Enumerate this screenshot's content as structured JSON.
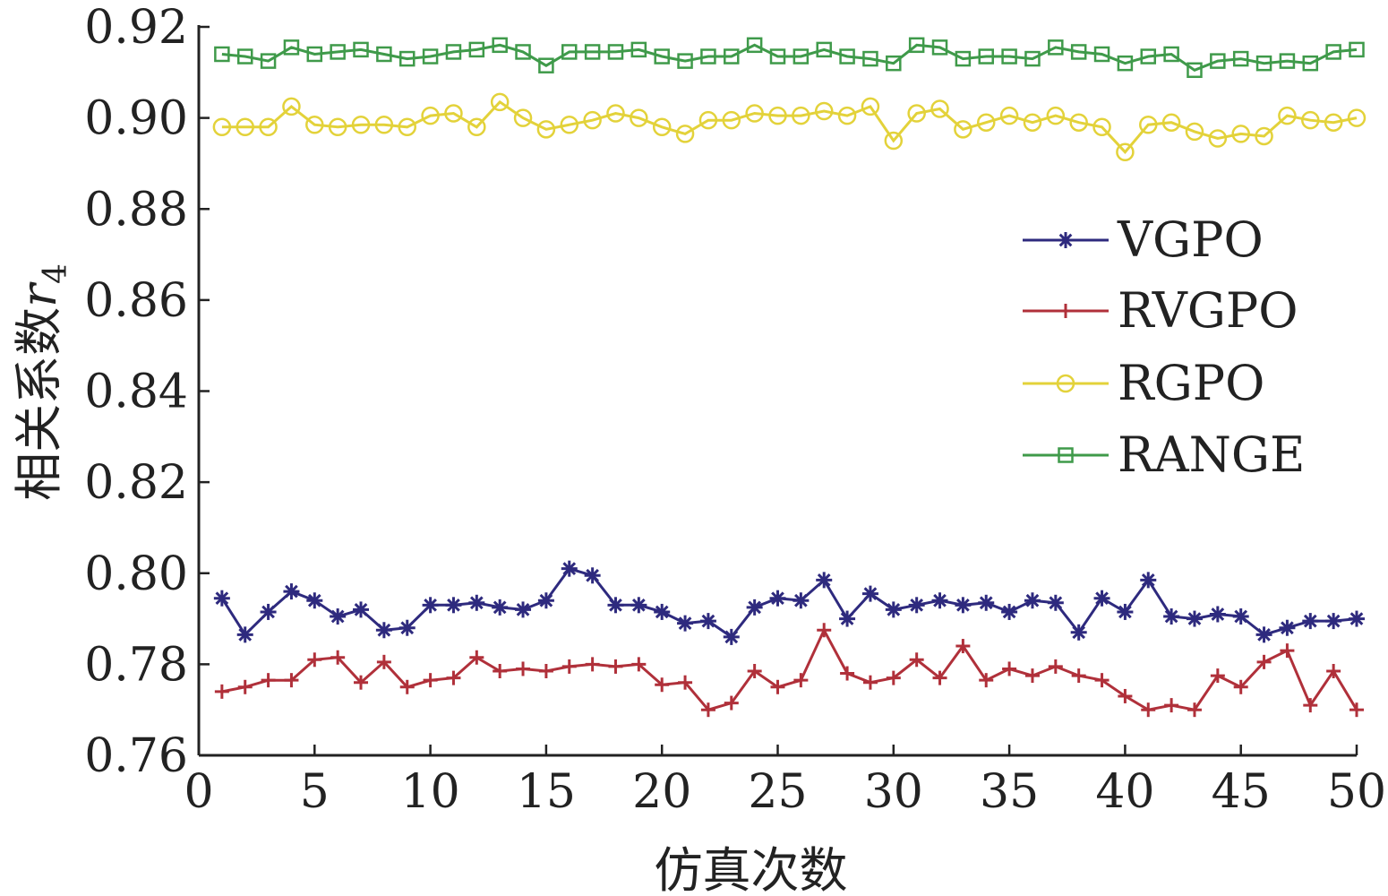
{
  "chart_data": {
    "type": "line",
    "xlabel": "仿真次数",
    "ylabel": "相关系数",
    "ylabel_var": "r",
    "ylabel_sub": "4",
    "xlim": [
      0,
      50
    ],
    "ylim": [
      0.76,
      0.92
    ],
    "xticks": [
      0,
      5,
      10,
      15,
      20,
      25,
      30,
      35,
      40,
      45,
      50
    ],
    "yticks": [
      "0.76",
      "0.78",
      "0.80",
      "0.82",
      "0.84",
      "0.86",
      "0.88",
      "0.90",
      "0.92"
    ],
    "legend_position": "right",
    "grid": false,
    "x": [
      1,
      2,
      3,
      4,
      5,
      6,
      7,
      8,
      9,
      10,
      11,
      12,
      13,
      14,
      15,
      16,
      17,
      18,
      19,
      20,
      21,
      22,
      23,
      24,
      25,
      26,
      27,
      28,
      29,
      30,
      31,
      32,
      33,
      34,
      35,
      36,
      37,
      38,
      39,
      40,
      41,
      42,
      43,
      44,
      45,
      46,
      47,
      48,
      49,
      50
    ],
    "series": [
      {
        "name": "VGPO",
        "color": "#2e2a7e",
        "marker": "asterisk",
        "values": [
          0.7945,
          0.7865,
          0.7915,
          0.796,
          0.794,
          0.7905,
          0.792,
          0.7875,
          0.788,
          0.793,
          0.793,
          0.7935,
          0.7925,
          0.792,
          0.794,
          0.801,
          0.7995,
          0.793,
          0.793,
          0.7915,
          0.789,
          0.7895,
          0.786,
          0.7925,
          0.7945,
          0.794,
          0.7985,
          0.79,
          0.7955,
          0.792,
          0.793,
          0.794,
          0.793,
          0.7935,
          0.7915,
          0.794,
          0.7935,
          0.787,
          0.7945,
          0.7915,
          0.7985,
          0.7905,
          0.79,
          0.791,
          0.7905,
          0.7865,
          0.788,
          0.7895,
          0.7895,
          0.79
        ]
      },
      {
        "name": "RVGPO",
        "color": "#b0303a",
        "marker": "plus",
        "values": [
          0.774,
          0.775,
          0.7765,
          0.7765,
          0.781,
          0.7815,
          0.776,
          0.7805,
          0.775,
          0.7765,
          0.777,
          0.7815,
          0.7785,
          0.779,
          0.7785,
          0.7795,
          0.78,
          0.7795,
          0.78,
          0.7755,
          0.776,
          0.77,
          0.7715,
          0.7785,
          0.775,
          0.7765,
          0.7875,
          0.778,
          0.776,
          0.777,
          0.781,
          0.777,
          0.784,
          0.7765,
          0.779,
          0.7775,
          0.7795,
          0.7775,
          0.7765,
          0.773,
          0.77,
          0.771,
          0.77,
          0.7775,
          0.775,
          0.7805,
          0.783,
          0.771,
          0.7785,
          0.77
        ]
      },
      {
        "name": "RGPO",
        "color": "#e3d23a",
        "marker": "circle",
        "values": [
          0.898,
          0.898,
          0.898,
          0.9025,
          0.8985,
          0.898,
          0.8985,
          0.8985,
          0.898,
          0.9005,
          0.901,
          0.898,
          0.9035,
          0.9,
          0.8975,
          0.8985,
          0.8995,
          0.901,
          0.9,
          0.898,
          0.8965,
          0.8995,
          0.8995,
          0.901,
          0.9005,
          0.9005,
          0.9015,
          0.9005,
          0.9025,
          0.895,
          0.901,
          0.902,
          0.8975,
          0.899,
          0.9005,
          0.899,
          0.9005,
          0.899,
          0.898,
          0.8925,
          0.8985,
          0.899,
          0.897,
          0.8955,
          0.8965,
          0.896,
          0.9005,
          0.8995,
          0.899,
          0.9
        ]
      },
      {
        "name": "RANGE",
        "color": "#3f9a4a",
        "marker": "square",
        "values": [
          0.914,
          0.9135,
          0.9125,
          0.9155,
          0.914,
          0.9145,
          0.915,
          0.914,
          0.913,
          0.9135,
          0.9145,
          0.915,
          0.916,
          0.9145,
          0.9115,
          0.9145,
          0.9145,
          0.9145,
          0.915,
          0.9135,
          0.9125,
          0.9135,
          0.9135,
          0.916,
          0.9135,
          0.9135,
          0.915,
          0.9135,
          0.913,
          0.912,
          0.916,
          0.9155,
          0.913,
          0.9135,
          0.9135,
          0.913,
          0.9155,
          0.9145,
          0.914,
          0.912,
          0.9135,
          0.914,
          0.9105,
          0.9125,
          0.913,
          0.912,
          0.9125,
          0.912,
          0.9145,
          0.915
        ]
      }
    ]
  }
}
